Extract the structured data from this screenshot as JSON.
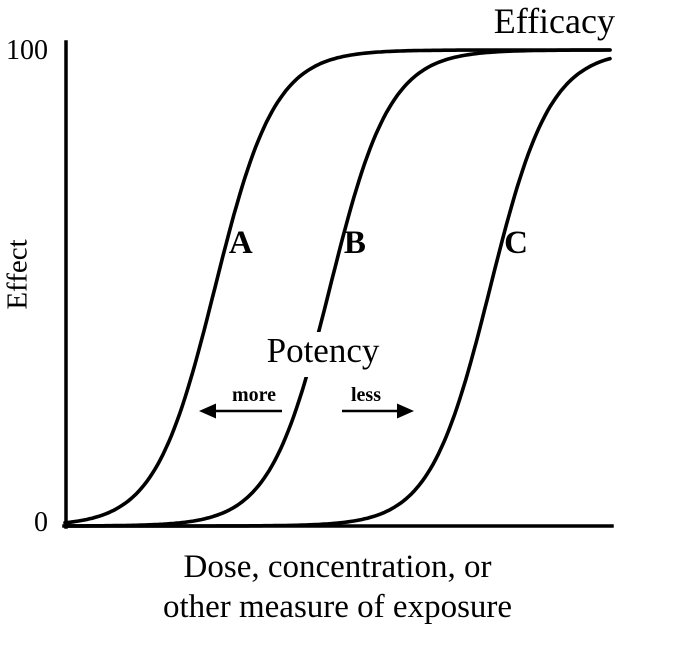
{
  "chart_data": {
    "type": "line",
    "description": "Sigmoidal dose-response curves for three drugs A, B and C showing potency (horizontal position) and efficacy (plateau height)",
    "ylabel": "Effect",
    "xlabel_lines": [
      "Dose, concentration, or",
      "other measure of exposure"
    ],
    "ylim": [
      0,
      100
    ],
    "yticks": [
      {
        "value": 100,
        "label": "100"
      },
      {
        "value": 0,
        "label": "0"
      }
    ],
    "x_range": [
      0,
      10
    ],
    "grid": false,
    "legend": false,
    "line_color": "#000000",
    "background_color": "#ffffff",
    "curve_model": "effect = max / (1 + exp(-(x - midpoint) / slope))",
    "series": [
      {
        "name": "A",
        "midpoint": 2.75,
        "slope": 0.55,
        "max": 100
      },
      {
        "name": "B",
        "midpoint": 4.86,
        "slope": 0.55,
        "max": 100
      },
      {
        "name": "C",
        "midpoint": 7.8,
        "slope": 0.55,
        "max": 100
      }
    ],
    "annotations": {
      "efficacy": "Efficacy",
      "potency": "Potency",
      "more": "more",
      "less": "less"
    }
  }
}
